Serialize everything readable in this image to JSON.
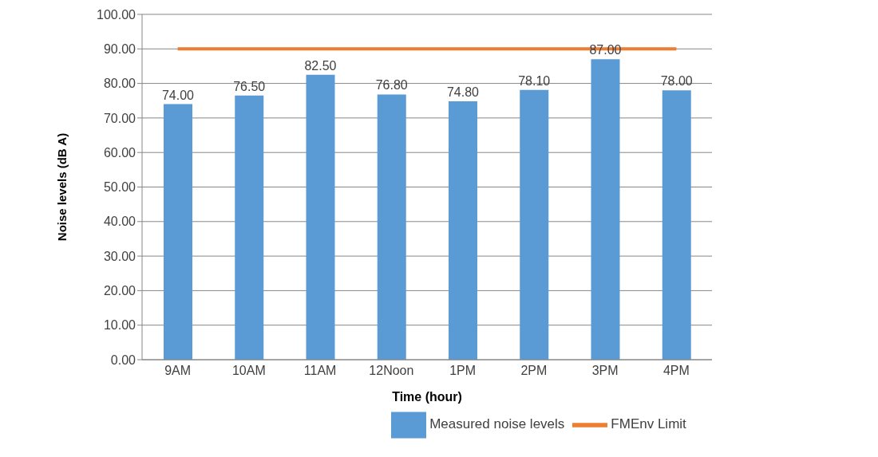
{
  "chart_data": {
    "type": "bar",
    "xlabel": "Time (hour)",
    "ylabel": "Noise levels (dB A)",
    "categories": [
      "9AM",
      "10AM",
      "11AM",
      "12Noon",
      "1PM",
      "2PM",
      "3PM",
      "4PM"
    ],
    "series": [
      {
        "name": "Measured noise levels",
        "color": "#5b9bd5",
        "values": [
          74.0,
          76.5,
          82.5,
          76.8,
          74.8,
          78.1,
          87.0,
          78.0
        ],
        "value_labels": [
          "74.00",
          "76.50",
          "82.50",
          "76.80",
          "74.80",
          "78.10",
          "87.00",
          "78.00"
        ]
      },
      {
        "name": "FMEnv Limit",
        "type": "line",
        "color": "#ed7d31",
        "values": [
          90,
          90,
          90,
          90,
          90,
          90,
          90,
          90
        ]
      }
    ],
    "ylim": [
      0,
      100
    ],
    "yticks": [
      {
        "value": 0,
        "label": "0.00"
      },
      {
        "value": 10,
        "label": "10.00"
      },
      {
        "value": 20,
        "label": "20.00"
      },
      {
        "value": 30,
        "label": "30.00"
      },
      {
        "value": 40,
        "label": "40.00"
      },
      {
        "value": 50,
        "label": "50.00"
      },
      {
        "value": 60,
        "label": "60.00"
      },
      {
        "value": 70,
        "label": "70.00"
      },
      {
        "value": 80,
        "label": "80.00"
      },
      {
        "value": 90,
        "label": "90.00"
      },
      {
        "value": 100,
        "label": "100.00"
      }
    ],
    "grid": "y",
    "legend": "bottom",
    "marker": "none"
  }
}
